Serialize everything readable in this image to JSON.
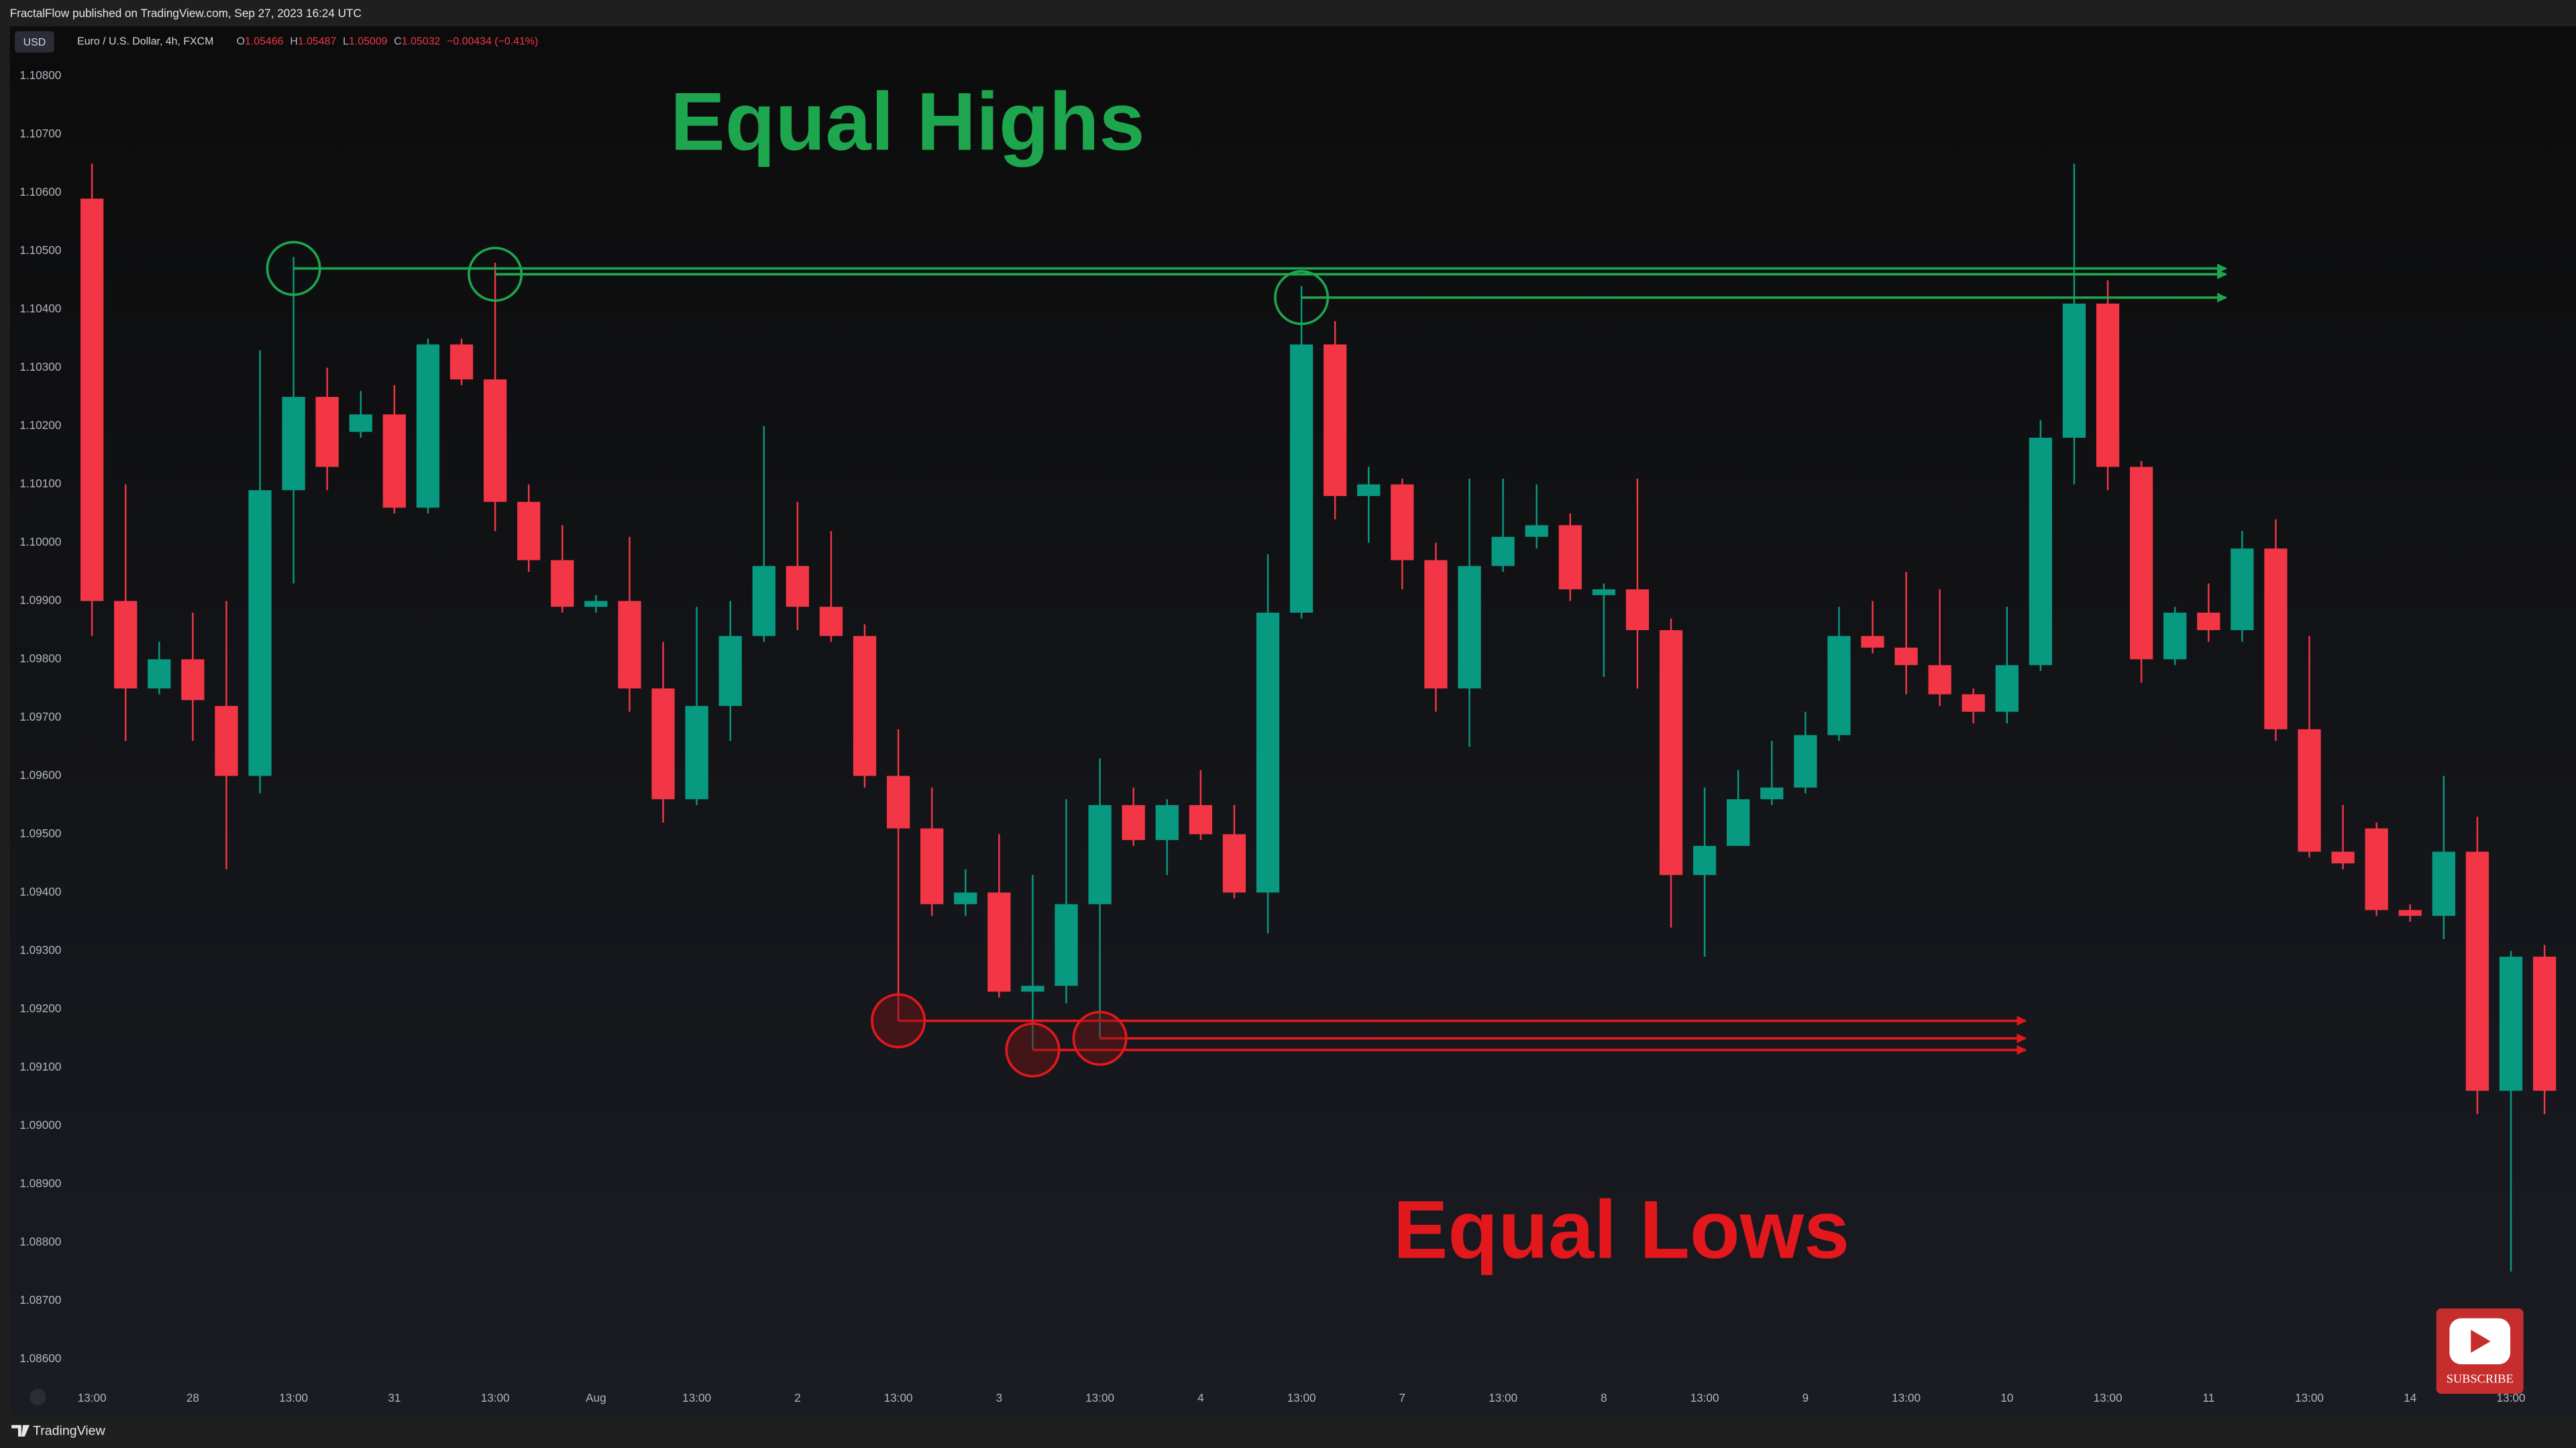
{
  "header": "FractalFlow published on TradingView.com, Sep 27, 2023 16:24 UTC",
  "footer": "TradingView",
  "subscribe": "SUBSCRIBE",
  "chart_data": {
    "type": "candlestick",
    "currency": "USD",
    "symbol": "Euro / U.S. Dollar, 4h, FXCM",
    "legend_values": [
      "O",
      "1.05466",
      "H",
      "1.05487",
      "L",
      "1.05009",
      "C",
      "1.05032",
      "−0.00434 (−0.41%)"
    ],
    "annotations": [
      "Equal Highs",
      "Equal Lows"
    ],
    "up_color": "#089981",
    "down_color": "#f23645",
    "categories": [
      "13:00",
      null,
      null,
      "28",
      null,
      null,
      "13:00",
      null,
      null,
      "31",
      null,
      null,
      "13:00",
      null,
      null,
      "Aug",
      null,
      null,
      "13:00",
      null,
      null,
      "2",
      null,
      null,
      "13:00",
      null,
      null,
      "3",
      null,
      null,
      "13:00",
      null,
      null,
      "4",
      null,
      null,
      "13:00",
      null,
      null,
      "7",
      null,
      null,
      "13:00",
      null,
      null,
      "8",
      null,
      null,
      "13:00",
      null,
      null,
      "9",
      null,
      null,
      "13:00",
      null,
      null,
      "10",
      null,
      null,
      "13:00",
      null,
      null,
      "11",
      null,
      null,
      "13:00",
      null,
      null,
      "14",
      null,
      null,
      "13:00",
      null
    ],
    "open": [
      1.1059,
      1.099,
      1.0975,
      1.098,
      1.0972,
      1.096,
      1.1009,
      1.1025,
      1.1019,
      1.1022,
      1.1006,
      1.1034,
      1.1028,
      1.1007,
      1.0997,
      1.0989,
      1.099,
      1.0975,
      1.0956,
      1.0972,
      1.0984,
      1.0996,
      1.0989,
      1.0984,
      1.096,
      1.0951,
      1.0938,
      1.094,
      1.0923,
      1.0924,
      1.0938,
      1.0955,
      1.0949,
      1.0955,
      1.095,
      1.094,
      1.0988,
      1.1034,
      1.1008,
      1.101,
      1.0997,
      1.0975,
      1.0996,
      1.1001,
      1.1003,
      1.0991,
      1.0992,
      1.0985,
      1.0943,
      1.0948,
      1.0956,
      1.0958,
      1.0967,
      1.0984,
      1.0982,
      1.0979,
      1.0974,
      1.0971,
      1.0979,
      1.1018,
      1.1041,
      1.1013,
      1.098,
      1.0988,
      1.0985,
      1.0999,
      1.0968,
      1.0947,
      1.0951,
      1.0937,
      1.0936,
      1.0947,
      1.0906,
      1.0929
    ],
    "high": [
      1.1065,
      1.101,
      1.0983,
      1.0988,
      1.099,
      1.1033,
      1.1049,
      1.103,
      1.1026,
      1.1027,
      1.1035,
      1.1035,
      1.1048,
      1.101,
      1.1003,
      1.0991,
      1.1001,
      1.0983,
      1.0989,
      1.099,
      1.102,
      1.1007,
      1.1002,
      1.0986,
      1.0968,
      1.0958,
      1.0944,
      1.095,
      1.0943,
      1.0956,
      1.0963,
      1.0958,
      1.0956,
      1.0961,
      1.0955,
      1.0998,
      1.1044,
      1.1038,
      1.1013,
      1.1011,
      1.1,
      1.1011,
      1.1011,
      1.101,
      1.1005,
      1.0993,
      1.1011,
      1.0987,
      1.0958,
      1.0961,
      1.0966,
      1.0971,
      1.0989,
      1.099,
      1.0995,
      1.0992,
      1.0975,
      1.0989,
      1.1021,
      1.1065,
      1.1045,
      1.1014,
      1.0989,
      1.0993,
      1.1002,
      1.1004,
      1.0984,
      1.0955,
      1.0952,
      1.0938,
      1.096,
      1.0953,
      1.093,
      1.0931
    ],
    "low": [
      1.0984,
      1.0966,
      1.0974,
      1.0966,
      1.0944,
      1.0957,
      1.0993,
      1.1009,
      1.1018,
      1.1005,
      1.1005,
      1.1027,
      1.1002,
      1.0995,
      1.0988,
      1.0988,
      1.0971,
      1.0952,
      1.0955,
      1.0966,
      1.0983,
      1.0985,
      1.0983,
      1.0958,
      1.0918,
      1.0936,
      1.0936,
      1.0922,
      1.0913,
      1.0921,
      1.0915,
      1.0948,
      1.0943,
      1.0949,
      1.0939,
      1.0933,
      1.0987,
      1.1004,
      1.1,
      1.0992,
      1.0971,
      1.0965,
      1.0995,
      1.0999,
      1.099,
      1.0977,
      1.0975,
      1.0934,
      1.0929,
      1.0948,
      1.0955,
      1.0957,
      1.0966,
      1.0981,
      1.0974,
      1.0972,
      1.0969,
      1.0969,
      1.0978,
      1.101,
      1.1009,
      1.0976,
      1.0979,
      1.0983,
      1.0983,
      1.0966,
      1.0946,
      1.0944,
      1.0936,
      1.0935,
      1.0932,
      1.0902,
      1.0875,
      1.0902
    ],
    "close": [
      1.099,
      1.0975,
      1.098,
      1.0973,
      1.096,
      1.1009,
      1.1025,
      1.1013,
      1.1022,
      1.1006,
      1.1034,
      1.1028,
      1.1007,
      1.0997,
      1.0989,
      1.099,
      1.0975,
      1.0956,
      1.0972,
      1.0984,
      1.0996,
      1.0989,
      1.0984,
      1.096,
      1.0951,
      1.0938,
      1.094,
      1.0923,
      1.0924,
      1.0938,
      1.0955,
      1.0949,
      1.0955,
      1.095,
      1.094,
      1.0988,
      1.1034,
      1.1008,
      1.101,
      1.0997,
      1.0975,
      1.0996,
      1.1001,
      1.1003,
      1.0992,
      1.0992,
      1.0985,
      1.0943,
      1.0948,
      1.0956,
      1.0958,
      1.0967,
      1.0984,
      1.0982,
      1.0979,
      1.0974,
      1.0971,
      1.0979,
      1.1018,
      1.1041,
      1.1013,
      1.098,
      1.0988,
      1.0985,
      1.0999,
      1.0968,
      1.0947,
      1.0945,
      1.0937,
      1.0936,
      1.0947,
      1.0906,
      1.0929,
      1.0906
    ],
    "ylim": [
      1.0856,
      1.1088
    ],
    "yticks": [
      {
        "value": 1.086,
        "label": "1.08600"
      },
      {
        "value": 1.087,
        "label": "1.08700"
      },
      {
        "value": 1.088,
        "label": "1.08800"
      },
      {
        "value": 1.089,
        "label": "1.08900"
      },
      {
        "value": 1.09,
        "label": "1.09000"
      },
      {
        "value": 1.091,
        "label": "1.09100"
      },
      {
        "value": 1.092,
        "label": "1.09200"
      },
      {
        "value": 1.093,
        "label": "1.09300"
      },
      {
        "value": 1.094,
        "label": "1.09400"
      },
      {
        "value": 1.095,
        "label": "1.09500"
      },
      {
        "value": 1.096,
        "label": "1.09600"
      },
      {
        "value": 1.097,
        "label": "1.09700"
      },
      {
        "value": 1.098,
        "label": "1.09800"
      },
      {
        "value": 1.099,
        "label": "1.09900"
      },
      {
        "value": 1.1,
        "label": "1.10000"
      },
      {
        "value": 1.101,
        "label": "1.10100"
      },
      {
        "value": 1.102,
        "label": "1.10200"
      },
      {
        "value": 1.103,
        "label": "1.10300"
      },
      {
        "value": 1.104,
        "label": "1.10400"
      },
      {
        "value": 1.105,
        "label": "1.10500"
      },
      {
        "value": 1.106,
        "label": "1.10600"
      },
      {
        "value": 1.107,
        "label": "1.10700"
      },
      {
        "value": 1.108,
        "label": "1.10800"
      }
    ],
    "grid": false
  }
}
